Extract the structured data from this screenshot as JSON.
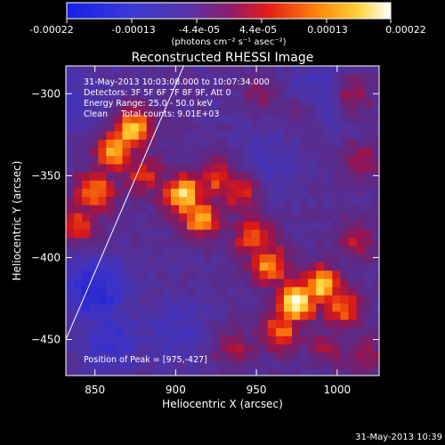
{
  "colorbar": {
    "ticks": [
      "-0.00022",
      "-0.00013",
      "-4.4e-05",
      "4.4e-05",
      "0.00013",
      "0.00022"
    ],
    "unit_label": "(photons cm⁻² s⁻¹ asec⁻²)"
  },
  "title": "Reconstructed RHESSI Image",
  "info": {
    "time_range": "31-May-2013 10:03:08.000 to 10:07:34.000",
    "detectors": "Detectors: 3F 5F 6F 7F 8F 9F, Att 0",
    "energy": "Energy Range: 25.0 - 50.0 keV",
    "clean": "Clean",
    "counts": "Total counts: 9.01E+03",
    "peak": "Position of Peak = [975,-427]"
  },
  "footer_timestamp": "31-May-2013 10:39",
  "colors": {
    "background": "#000000",
    "limb_line": "#ffffff",
    "text": "#ffffff"
  },
  "chart_data": {
    "type": "heatmap",
    "title": "Reconstructed RHESSI Image",
    "xlabel": "Heliocentric X (arcsec)",
    "ylabel": "Heliocentric Y (arcsec)",
    "xlim": [
      832,
      1026
    ],
    "ylim": [
      -472,
      -283
    ],
    "xticks": [
      850,
      900,
      950,
      1000
    ],
    "yticks": [
      -300,
      -350,
      -400,
      -450
    ],
    "color_range": [
      -0.00022,
      0.00022
    ],
    "colormap": "blue-purple-red-yellow-white",
    "peak": [
      975,
      -427
    ],
    "limb_line": {
      "x": [
        832,
        905
      ],
      "y": [
        -450,
        -283
      ]
    },
    "sources": [
      {
        "x": 862,
        "y": -335,
        "level": 0.75
      },
      {
        "x": 873,
        "y": -322,
        "level": 0.85
      },
      {
        "x": 850,
        "y": -360,
        "level": 0.65
      },
      {
        "x": 840,
        "y": -380,
        "level": 0.5
      },
      {
        "x": 880,
        "y": -350,
        "level": 0.45
      },
      {
        "x": 905,
        "y": -362,
        "level": 0.9
      },
      {
        "x": 915,
        "y": -375,
        "level": 0.75
      },
      {
        "x": 925,
        "y": -352,
        "level": 0.55
      },
      {
        "x": 940,
        "y": -360,
        "level": 0.5
      },
      {
        "x": 948,
        "y": -388,
        "level": 0.6
      },
      {
        "x": 958,
        "y": -405,
        "level": 0.7
      },
      {
        "x": 975,
        "y": -427,
        "level": 1.0
      },
      {
        "x": 990,
        "y": -418,
        "level": 0.85
      },
      {
        "x": 965,
        "y": -445,
        "level": 0.6
      },
      {
        "x": 1002,
        "y": -430,
        "level": 0.6
      },
      {
        "x": 1012,
        "y": -390,
        "level": 0.35
      },
      {
        "x": 935,
        "y": -455,
        "level": 0.35
      },
      {
        "x": 995,
        "y": -455,
        "level": 0.3
      },
      {
        "x": 1008,
        "y": -300,
        "level": 0.45
      },
      {
        "x": 980,
        "y": -310,
        "level": 0.3
      },
      {
        "x": 955,
        "y": -300,
        "level": 0.25
      },
      {
        "x": 1015,
        "y": -340,
        "level": 0.3
      },
      {
        "x": 1018,
        "y": -460,
        "level": 0.3
      }
    ],
    "negatives": [
      {
        "x": 850,
        "y": -420,
        "level": 1.0
      },
      {
        "x": 860,
        "y": -450,
        "level": 0.7
      },
      {
        "x": 990,
        "y": -300,
        "level": 0.6
      },
      {
        "x": 900,
        "y": -445,
        "level": 0.5
      },
      {
        "x": 840,
        "y": -305,
        "level": 0.4
      },
      {
        "x": 958,
        "y": -340,
        "level": 0.4
      }
    ]
  }
}
